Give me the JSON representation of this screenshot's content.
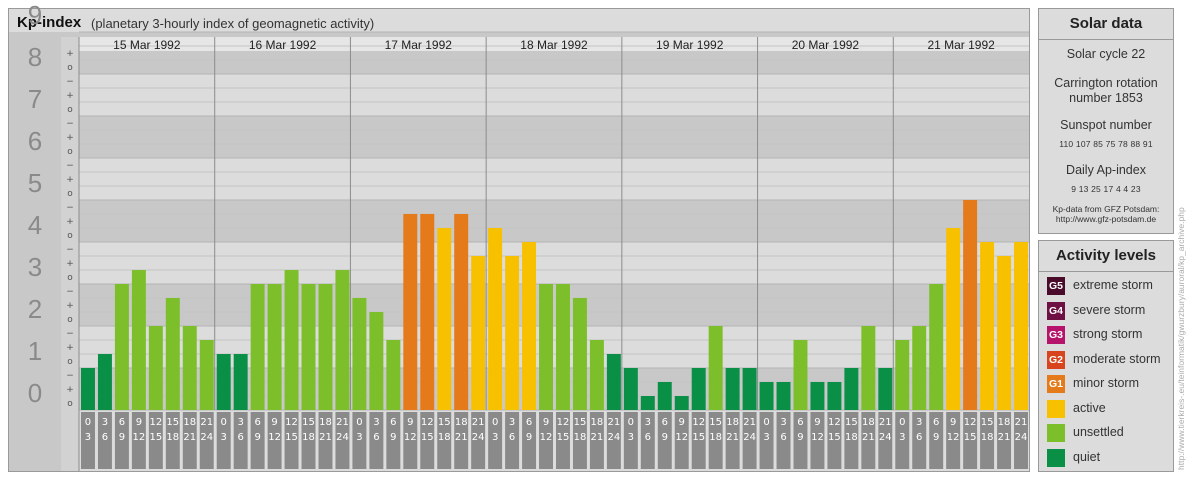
{
  "header": {
    "title": "Kp-index",
    "subtitle": "(planetary 3-hourly index of geomagnetic activity)"
  },
  "chart_data": {
    "type": "bar",
    "title": "Kp-index",
    "subtitle": "(planetary 3-hourly index of geomagnetic activity)",
    "ylim": [
      0,
      9
    ],
    "y_ticks": [
      "0",
      "1",
      "2",
      "3",
      "4",
      "5",
      "6",
      "7",
      "8",
      "9"
    ],
    "y_subticks": [
      "o",
      "+",
      "−"
    ],
    "days": [
      "15 Mar 1992",
      "16 Mar 1992",
      "17 Mar 1992",
      "18 Mar 1992",
      "19 Mar 1992",
      "20 Mar 1992",
      "21 Mar 1992"
    ],
    "interval_labels": [
      [
        "0",
        "3"
      ],
      [
        "3",
        "6"
      ],
      [
        "6",
        "9"
      ],
      [
        "9",
        "12"
      ],
      [
        "12",
        "15"
      ],
      [
        "15",
        "18"
      ],
      [
        "18",
        "21"
      ],
      [
        "21",
        "24"
      ]
    ],
    "values": [
      [
        1.0,
        1.333,
        3.0,
        3.333,
        2.0,
        2.667,
        2.0,
        1.667
      ],
      [
        1.333,
        1.333,
        3.0,
        3.0,
        3.333,
        3.0,
        3.0,
        3.333
      ],
      [
        2.667,
        2.333,
        1.667,
        4.667,
        4.667,
        4.333,
        4.667,
        3.667
      ],
      [
        4.333,
        3.667,
        4.0,
        3.0,
        3.0,
        2.667,
        1.667,
        1.333
      ],
      [
        1.0,
        0.333,
        0.667,
        0.333,
        1.0,
        2.0,
        1.0,
        1.0
      ],
      [
        0.667,
        0.667,
        1.667,
        0.667,
        0.667,
        1.0,
        2.0,
        1.0
      ],
      [
        1.667,
        2.0,
        3.0,
        4.333,
        5.0,
        4.0,
        3.667,
        4.0
      ]
    ],
    "levels": [
      {
        "min": 0,
        "name": "quiet",
        "color": "#0a8f47"
      },
      {
        "min": 1.5,
        "name": "unsettled",
        "color": "#7cbf2a"
      },
      {
        "min": 3.5,
        "name": "active",
        "color": "#f7c100"
      },
      {
        "min": 4.5,
        "name": "minor storm",
        "color": "#e47a1a"
      }
    ],
    "grid": true,
    "background_bands": [
      "#c8c8c8",
      "#dcdcdc"
    ]
  },
  "solar": {
    "title": "Solar data",
    "cycle": "Solar cycle 22",
    "carrington_line1": "Carrington rotation",
    "carrington_line2": "number 1853",
    "sunspot_label": "Sunspot number",
    "sunspot_values": "110 107 85 75 78 88 91",
    "ap_label": "Daily Ap-index",
    "ap_values": "9 13 25 17 4 4 23",
    "source_line1": "Kp-data from GFZ Potsdam:",
    "source_line2": "http://www.gfz-potsdam.de"
  },
  "activity": {
    "title": "Activity levels",
    "items": [
      {
        "badge": "G5",
        "label": "extreme storm",
        "color": "#4a0a2a"
      },
      {
        "badge": "G4",
        "label": "severe storm",
        "color": "#6e1044"
      },
      {
        "badge": "G3",
        "label": "strong storm",
        "color": "#b5146a"
      },
      {
        "badge": "G2",
        "label": "moderate storm",
        "color": "#d8441e"
      },
      {
        "badge": "G1",
        "label": "minor storm",
        "color": "#e47a1a"
      },
      {
        "badge": "",
        "label": "active",
        "color": "#f7c100"
      },
      {
        "badge": "",
        "label": "unsettled",
        "color": "#7cbf2a"
      },
      {
        "badge": "",
        "label": "quiet",
        "color": "#0a8f47"
      }
    ]
  },
  "credit": "http://www.tierkreis-.eu/teinformatik/gwurzbury/auroral/kp_archive.php"
}
